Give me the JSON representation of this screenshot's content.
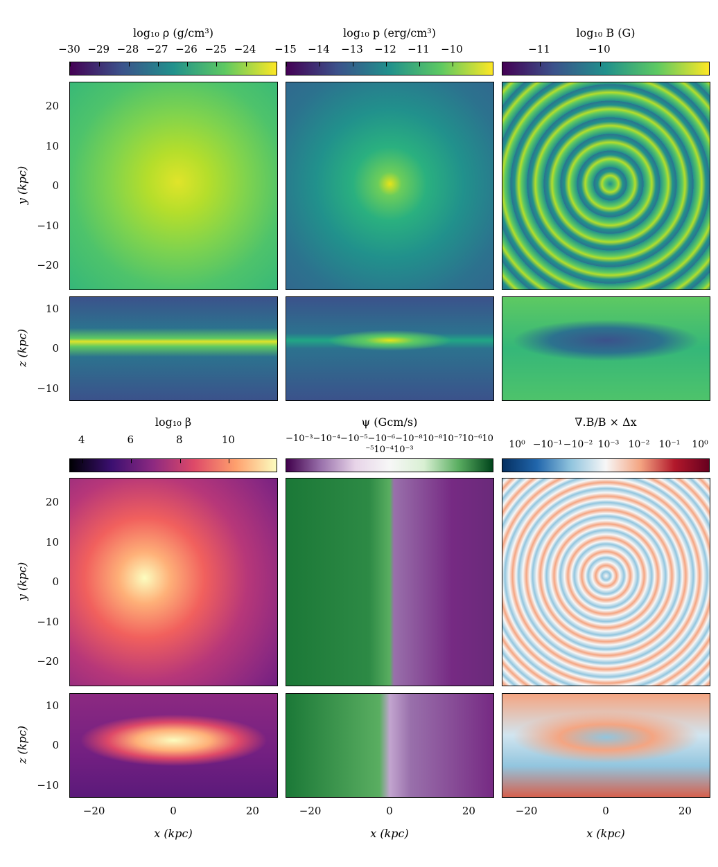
{
  "chart_data": {
    "type": "heatmap",
    "panels": [
      {
        "name": "density",
        "colorbar_label": "log₁₀ ρ (g/cm³)",
        "colormap": "viridis",
        "range": [
          -30,
          -22.9
        ],
        "ticks": [
          "−30",
          "−29",
          "−28",
          "−27",
          "−26",
          "−25",
          "−24"
        ],
        "tick_values": [
          -30,
          -29,
          -28,
          -27,
          -26,
          -25,
          -24
        ]
      },
      {
        "name": "pressure",
        "colorbar_label": "log₁₀ p (erg/cm³)",
        "colormap": "viridis",
        "range": [
          -15,
          -8.75
        ],
        "ticks": [
          "−15",
          "−14",
          "−13",
          "−12",
          "−11",
          "−10"
        ],
        "tick_values": [
          -15,
          -14,
          -13,
          -12,
          -11,
          -10
        ]
      },
      {
        "name": "magnetic-field",
        "colorbar_label": "log₁₀ B (G)",
        "colormap": "viridis",
        "range": [
          -11.62,
          -8.17
        ],
        "ticks": [
          "−11",
          "−10"
        ],
        "tick_values": [
          -11,
          -10
        ]
      },
      {
        "name": "plasma-beta",
        "colorbar_label": "log₁₀ β",
        "colormap": "magma",
        "range": [
          3.5,
          12.0
        ],
        "ticks": [
          "4",
          "6",
          "8",
          "10"
        ],
        "tick_values": [
          4,
          6,
          8,
          10
        ]
      },
      {
        "name": "psi",
        "colorbar_label": "ψ (Gcm/s)",
        "colormap": "PRGn",
        "symlog": true,
        "tick_text": "−10⁻³−10⁻⁴−10⁻⁵−10⁻⁶−10⁻⁸10⁻⁸10⁻⁷10⁻⁶10⁻⁵10⁻⁴10⁻³"
      },
      {
        "name": "divergence-error",
        "colorbar_label": "∇.B/B × Δx",
        "colormap": "RdBu_r",
        "symlog": true,
        "ticks": [
          "10⁰",
          "−10⁻¹",
          "−10⁻²",
          "10⁻³",
          "10⁻²",
          "10⁻¹",
          "10⁰"
        ]
      }
    ],
    "y_axis_faceon": {
      "label": "y (kpc)",
      "range": [
        -26,
        26
      ],
      "ticks": [
        "20",
        "10",
        "0",
        "−10",
        "−20"
      ],
      "tick_values": [
        20,
        10,
        0,
        -10,
        -20
      ]
    },
    "z_axis_edgeon": {
      "label": "z (kpc)",
      "range": [
        -13,
        13
      ],
      "ticks": [
        "10",
        "0",
        "−10"
      ],
      "tick_values": [
        10,
        0,
        -10
      ]
    },
    "x_axis": {
      "label": "x (kpc)",
      "range": [
        -26,
        26
      ],
      "ticks": [
        "−20",
        "0",
        "20"
      ],
      "tick_values": [
        -20,
        0,
        20
      ]
    }
  }
}
